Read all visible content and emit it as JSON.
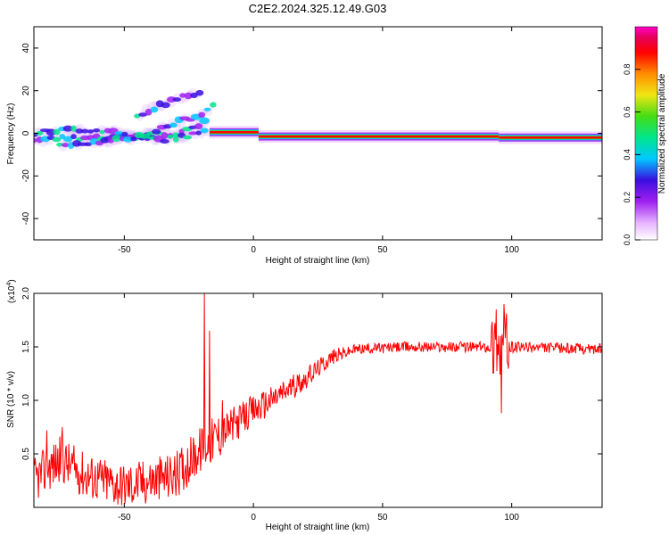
{
  "title": "C2E2.2024.325.12.49.G03",
  "chart_data": [
    {
      "type": "heatmap",
      "xlabel": "Height of straight line (km)",
      "ylabel": "Frequency (Hz)",
      "xlim": [
        -85,
        135
      ],
      "ylim": [
        -50,
        50
      ],
      "xticks": [
        -50,
        0,
        50,
        100
      ],
      "yticks": [
        -40,
        -20,
        0,
        20,
        40
      ],
      "colorbar": {
        "label": "Normalized spectral amplitude",
        "range": [
          0,
          1
        ],
        "ticks": [
          "0.0",
          "0.2",
          "0.4",
          "0.6",
          "0.8"
        ],
        "colors": [
          "#ffffff",
          "#e6b3ff",
          "#a020f0",
          "#3a0ee0",
          "#00c8ff",
          "#00e68c",
          "#46dc14",
          "#f0e614",
          "#ff8c00",
          "#ff0000",
          "#e6005a",
          "#ff00c8"
        ]
      },
      "ridges": [
        {
          "x": [
            -85,
            -70,
            -55,
            -40,
            -30,
            -22,
            -17
          ],
          "y": [
            -3,
            -2,
            -2,
            -1,
            0,
            3,
            7
          ]
        },
        {
          "x": [
            -85,
            -70,
            -55,
            -45,
            -35,
            -25,
            -17
          ],
          "y": [
            0,
            2,
            1,
            -2,
            -3,
            -1,
            1
          ]
        },
        {
          "x": [
            -75,
            -60,
            -50,
            -40,
            -30,
            -20,
            -15
          ],
          "y": [
            -5,
            -4,
            -3,
            0,
            5,
            9,
            14
          ]
        },
        {
          "x": [
            -45,
            -38,
            -30,
            -20
          ],
          "y": [
            8,
            12,
            16,
            20
          ]
        }
      ],
      "band_segments": [
        {
          "x": [
            -17,
            2
          ],
          "y": 0.5
        },
        {
          "x": [
            2,
            95
          ],
          "y": -1.5
        },
        {
          "x": [
            95,
            135
          ],
          "y": -2
        }
      ]
    },
    {
      "type": "line",
      "xlabel": "Height of straight line (km)",
      "ylabel": "SNR (10 * v/v)",
      "y_multiplier": "(x10",
      "y_multiplier_exp": "4",
      "y_multiplier_close": ")",
      "xlim": [
        -85,
        135
      ],
      "ylim": [
        0,
        2.0
      ],
      "xticks": [
        -50,
        0,
        50,
        100
      ],
      "yticks": [
        "0.5",
        "1.0",
        "1.5",
        "2.0"
      ],
      "color": "#ff0000",
      "envelope": [
        {
          "x": -85,
          "y": 0.25
        },
        {
          "x": -75,
          "y": 0.45
        },
        {
          "x": -65,
          "y": 0.3
        },
        {
          "x": -50,
          "y": 0.2
        },
        {
          "x": -40,
          "y": 0.25
        },
        {
          "x": -30,
          "y": 0.3
        },
        {
          "x": -20,
          "y": 0.55
        },
        {
          "x": -12,
          "y": 0.7
        },
        {
          "x": 0,
          "y": 0.9
        },
        {
          "x": 10,
          "y": 1.05
        },
        {
          "x": 20,
          "y": 1.2
        },
        {
          "x": 30,
          "y": 1.4
        },
        {
          "x": 40,
          "y": 1.48
        },
        {
          "x": 60,
          "y": 1.5
        },
        {
          "x": 95,
          "y": 1.5
        },
        {
          "x": 135,
          "y": 1.48
        }
      ],
      "spikes": [
        {
          "x": -80,
          "y": 0.72
        },
        {
          "x": -74,
          "y": 0.75
        },
        {
          "x": -19,
          "y": 2.0
        },
        {
          "x": -17,
          "y": 1.65
        },
        {
          "x": -12,
          "y": 1.0
        },
        {
          "x": 94,
          "y": 1.85
        },
        {
          "x": 96,
          "y": 0.88
        },
        {
          "x": 97,
          "y": 1.9
        }
      ]
    }
  ]
}
